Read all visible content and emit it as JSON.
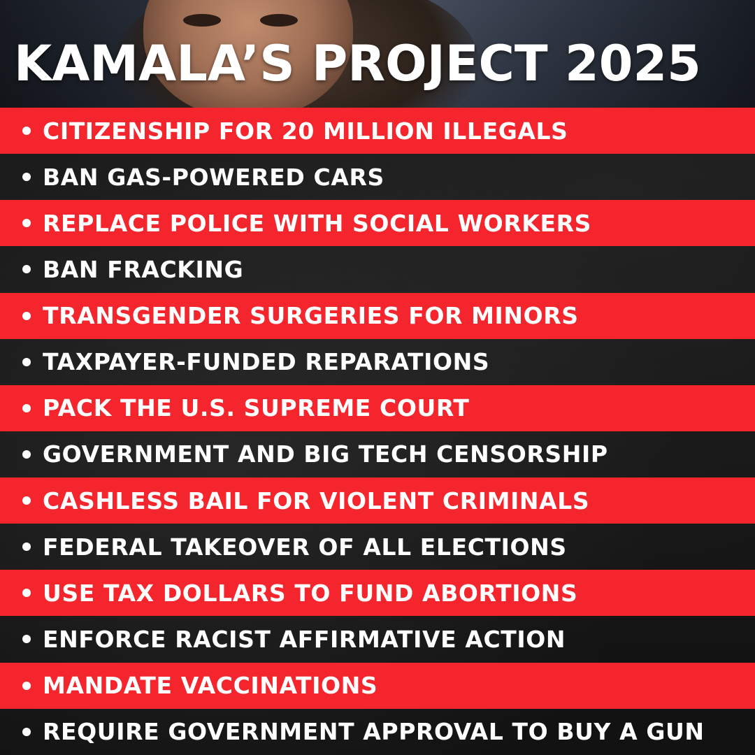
{
  "colors": {
    "accent_red": "#f4252c",
    "background_dark": "#151515",
    "text": "#ffffff"
  },
  "title": "KAMALA’S PROJECT 2025",
  "items": [
    "CITIZENSHIP FOR 20 MILLION ILLEGALS",
    "BAN GAS-POWERED CARS",
    "REPLACE POLICE WITH SOCIAL WORKERS",
    "BAN FRACKING",
    "TRANSGENDER SURGERIES FOR MINORS",
    "TAXPAYER-FUNDED REPARATIONS",
    "PACK THE U.S. SUPREME COURT",
    "GOVERNMENT AND BIG TECH CENSORSHIP",
    "CASHLESS BAIL FOR VIOLENT CRIMINALS",
    "FEDERAL TAKEOVER OF ALL ELECTIONS",
    "USE TAX DOLLARS TO FUND ABORTIONS",
    "ENFORCE RACIST AFFIRMATIVE ACTION",
    "MANDATE VACCINATIONS",
    "REQUIRE GOVERNMENT APPROVAL TO BUY A GUN"
  ]
}
